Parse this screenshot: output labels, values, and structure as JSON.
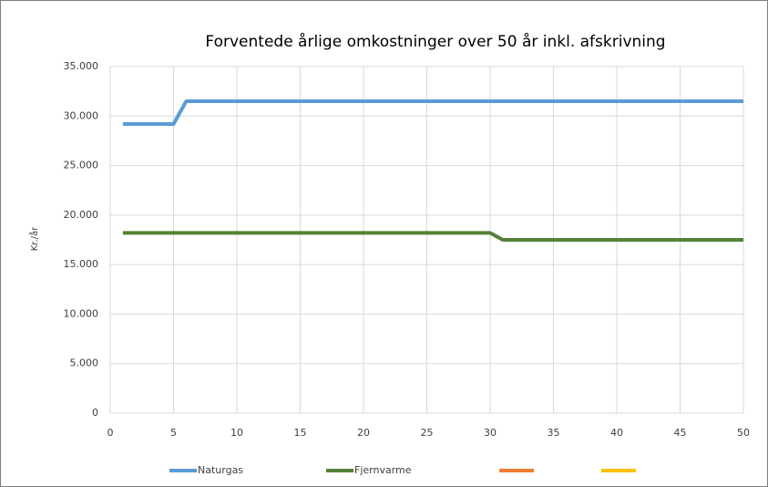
{
  "chart_data": {
    "type": "line",
    "title": "Forventede årlige omkostninger over 50 år inkl. afskrivning",
    "y_label": "Kr./år",
    "x": [
      1,
      2,
      3,
      4,
      5,
      6,
      7,
      8,
      9,
      10,
      11,
      12,
      13,
      14,
      15,
      16,
      17,
      18,
      19,
      20,
      21,
      22,
      23,
      24,
      25,
      26,
      27,
      28,
      29,
      30,
      31,
      32,
      33,
      34,
      35,
      36,
      37,
      38,
      39,
      40,
      41,
      42,
      43,
      44,
      45,
      46,
      47,
      48,
      49,
      50
    ],
    "series": [
      {
        "name": "Naturgas",
        "color": "#5b9bd5",
        "values": [
          29200,
          29200,
          29200,
          29200,
          29200,
          31500,
          31500,
          31500,
          31500,
          31500,
          31500,
          31500,
          31500,
          31500,
          31500,
          31500,
          31500,
          31500,
          31500,
          31500,
          31500,
          31500,
          31500,
          31500,
          31500,
          31500,
          31500,
          31500,
          31500,
          31500,
          31500,
          31500,
          31500,
          31500,
          31500,
          31500,
          31500,
          31500,
          31500,
          31500,
          31500,
          31500,
          31500,
          31500,
          31500,
          31500,
          31500,
          31500,
          31500,
          31500
        ]
      },
      {
        "name": "Fjernvarme",
        "color": "#548235",
        "values": [
          18200,
          18200,
          18200,
          18200,
          18200,
          18200,
          18200,
          18200,
          18200,
          18200,
          18200,
          18200,
          18200,
          18200,
          18200,
          18200,
          18200,
          18200,
          18200,
          18200,
          18200,
          18200,
          18200,
          18200,
          18200,
          18200,
          18200,
          18200,
          18200,
          18200,
          17500,
          17500,
          17500,
          17500,
          17500,
          17500,
          17500,
          17500,
          17500,
          17500,
          17500,
          17500,
          17500,
          17500,
          17500,
          17500,
          17500,
          17500,
          17500,
          17500
        ]
      },
      {
        "color": "#ed7d31",
        "values": [
          null,
          null,
          null,
          null,
          null,
          null,
          null,
          null,
          null,
          null,
          null,
          null,
          null,
          null,
          null,
          null,
          null,
          null,
          null,
          null,
          null,
          null,
          null,
          null,
          null,
          null,
          null,
          null,
          null,
          null,
          null,
          null,
          null,
          null,
          null,
          null,
          null,
          null,
          null,
          null,
          null,
          null,
          null,
          null,
          null,
          null,
          null,
          null,
          null,
          null
        ]
      },
      {
        "color": "#ffc000",
        "values": [
          null,
          null,
          null,
          null,
          null,
          null,
          null,
          null,
          null,
          null,
          null,
          null,
          null,
          null,
          null,
          null,
          null,
          null,
          null,
          null,
          null,
          null,
          null,
          null,
          null,
          null,
          null,
          null,
          null,
          null,
          null,
          null,
          null,
          null,
          null,
          null,
          null,
          null,
          null,
          null,
          null,
          null,
          null,
          null,
          null,
          null,
          null,
          null,
          null,
          null
        ]
      }
    ],
    "xlim": [
      0,
      50
    ],
    "xticks": [
      0,
      5,
      10,
      15,
      20,
      25,
      30,
      35,
      40,
      45,
      50
    ],
    "ylim": [
      0,
      35000
    ],
    "yticks": [
      0,
      {
        "value": 5000,
        "label": "5.000"
      },
      {
        "value": 10000,
        "label": "10.000"
      },
      {
        "value": 15000,
        "label": "15.000"
      },
      {
        "value": 20000,
        "label": "20.000"
      },
      {
        "value": 25000,
        "label": "25.000"
      },
      {
        "value": 30000,
        "label": "30.000"
      },
      {
        "value": 35000,
        "label": "35.000"
      }
    ],
    "grid": true,
    "legend": "bottom"
  }
}
